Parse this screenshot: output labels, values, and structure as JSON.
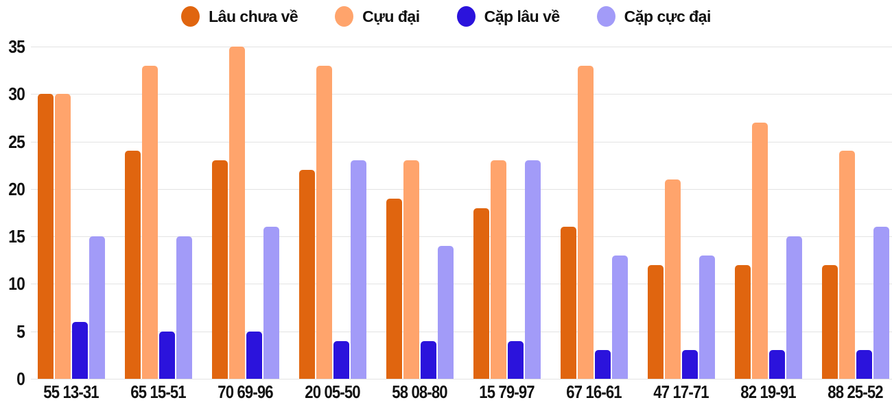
{
  "colors": {
    "background": "#FFFFFF",
    "gridline": "#E3E3E3",
    "text": "#101010",
    "series_1": "#E0650F",
    "series_2": "#FFA46C",
    "series_3": "#2B13DC",
    "series_4": "#A29BF8"
  },
  "chart_data": {
    "type": "bar",
    "title": "",
    "xlabel": "",
    "ylabel": "",
    "categories": [
      "55 13-31",
      "65 15-51",
      "70 69-96",
      "20 05-50",
      "58 08-80",
      "15 79-97",
      "67 16-61",
      "47 17-71",
      "82 19-91",
      "88 25-52"
    ],
    "series": [
      {
        "name": "Lâu chưa về",
        "color": "#E0650F",
        "values": [
          30,
          24,
          23,
          22,
          19,
          18,
          16,
          12,
          12,
          12
        ]
      },
      {
        "name": "Cựu đại",
        "color": "#FFA46C",
        "values": [
          30,
          33,
          35,
          33,
          23,
          23,
          33,
          21,
          27,
          24
        ]
      },
      {
        "name": "Cặp lâu về",
        "color": "#2B13DC",
        "values": [
          6,
          5,
          5,
          4,
          4,
          4,
          3,
          3,
          3,
          3
        ]
      },
      {
        "name": "Cặp cực đại",
        "color": "#A29BF8",
        "values": [
          15,
          15,
          16,
          23,
          14,
          23,
          13,
          13,
          15,
          16
        ]
      }
    ],
    "ylim": [
      0,
      35
    ],
    "yticks": [
      0,
      5,
      10,
      15,
      20,
      25,
      30,
      35
    ],
    "grid": true,
    "legend_position": "top-center"
  }
}
